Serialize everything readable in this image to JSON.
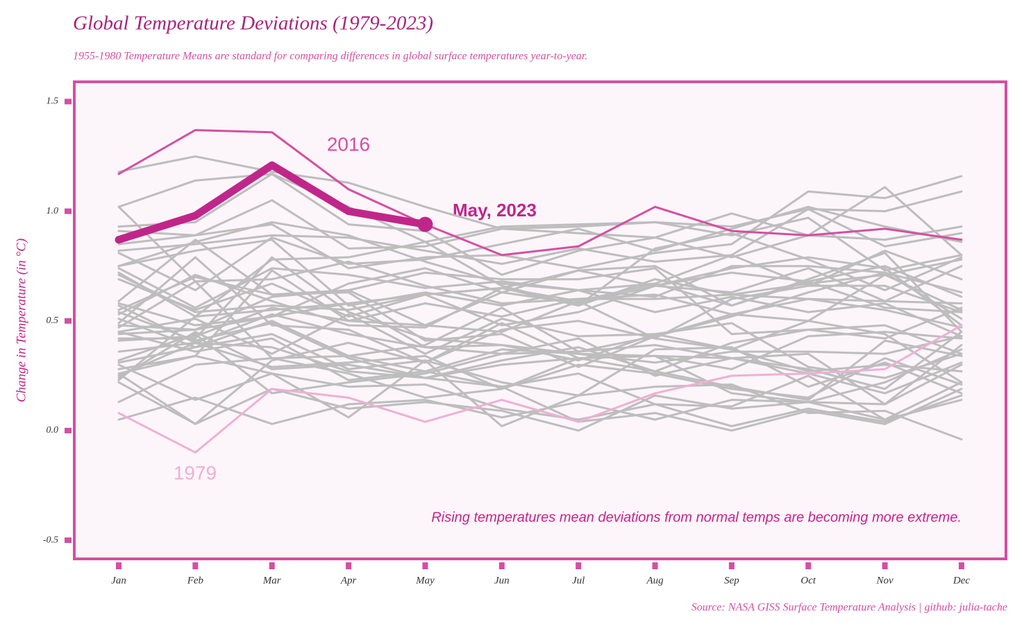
{
  "chart_data": {
    "type": "line",
    "title": "Global Temperature Deviations (1979-2023)",
    "subtitle": "1955-1980 Temperature Means are standard for comparing differences in global surface temperatures year-to-year.",
    "y_label": "Change in Temperature (in °C)",
    "source": "Source: NASA GISS Surface Temperature Analysis | github: julia-tache",
    "annotations": [
      "May, 2023",
      "Rising temperatures mean deviations from normal temps are becoming more extreme."
    ],
    "categories": [
      "Jan",
      "Feb",
      "Mar",
      "Apr",
      "May",
      "Jun",
      "Jul",
      "Aug",
      "Sep",
      "Oct",
      "Nov",
      "Dec"
    ],
    "ylim": [
      -0.585,
      1.59
    ],
    "yticks": [
      {
        "value": -0.5,
        "label": "-0.5"
      },
      {
        "value": 0,
        "label": "0.0"
      },
      {
        "value": 0.5,
        "label": "0.5"
      },
      {
        "value": 1,
        "label": "1.0"
      },
      {
        "value": 1.5,
        "label": "1.5"
      }
    ],
    "grid": false,
    "series": [
      {
        "color": "#bdbdbd",
        "values": [
          0.25,
          0.4,
          0.29,
          0.31,
          0.34,
          0.19,
          0.3,
          0.26,
          0.19,
          0.15,
          0.33,
          0.21
        ]
      },
      {
        "color": "#bdbdbd",
        "values": [
          0.54,
          0.41,
          0.49,
          0.33,
          0.24,
          0.3,
          0.33,
          0.34,
          0.17,
          0.13,
          0.22,
          0.37
        ]
      },
      {
        "color": "#bdbdbd",
        "values": [
          0.05,
          0.15,
          0.03,
          0.12,
          0.14,
          0.06,
          0.13,
          0.05,
          0.14,
          0.13,
          0.12,
          0.39
        ]
      },
      {
        "color": "#bdbdbd",
        "values": [
          0.51,
          0.38,
          0.44,
          0.28,
          0.32,
          0.22,
          0.16,
          0.37,
          0.38,
          0.2,
          0.31,
          0.17
        ]
      },
      {
        "color": "#bdbdbd",
        "values": [
          0.3,
          0.14,
          0.26,
          0.06,
          0.32,
          0.02,
          0.16,
          0.2,
          0.21,
          0.08,
          0.09,
          -0.04
        ]
      },
      {
        "color": "#bdbdbd",
        "values": [
          0.22,
          0.03,
          0.19,
          0.1,
          0.13,
          0.09,
          0.0,
          0.16,
          0.1,
          0.13,
          0.05,
          0.14
        ]
      },
      {
        "color": "#bdbdbd",
        "values": [
          0.28,
          0.34,
          0.26,
          0.2,
          0.21,
          0.1,
          0.05,
          0.12,
          0.02,
          0.1,
          0.04,
          0.16
        ]
      },
      {
        "color": "#bdbdbd",
        "values": [
          0.32,
          0.44,
          0.17,
          0.22,
          0.26,
          0.35,
          0.42,
          0.25,
          0.33,
          0.28,
          0.19,
          0.45
        ]
      },
      {
        "color": "#bdbdbd",
        "values": [
          0.57,
          0.4,
          0.53,
          0.44,
          0.38,
          0.35,
          0.36,
          0.39,
          0.33,
          0.35,
          0.12,
          0.3
        ]
      },
      {
        "color": "#bdbdbd",
        "values": [
          0.13,
          0.3,
          0.33,
          0.26,
          0.15,
          0.19,
          0.33,
          0.34,
          0.33,
          0.26,
          0.17,
          0.31
        ]
      },
      {
        "color": "#bdbdbd",
        "values": [
          0.42,
          0.42,
          0.79,
          0.54,
          0.42,
          0.39,
          0.35,
          0.34,
          0.28,
          0.43,
          0.45,
          0.42
        ]
      },
      {
        "color": "#bdbdbd",
        "values": [
          0.45,
          0.51,
          0.35,
          0.53,
          0.35,
          0.51,
          0.43,
          0.44,
          0.49,
          0.29,
          0.24,
          0.35
        ]
      },
      {
        "color": "#bdbdbd",
        "values": [
          0.45,
          0.36,
          0.42,
          0.23,
          0.27,
          0.2,
          0.04,
          0.08,
          0.0,
          0.09,
          0.03,
          0.19
        ]
      },
      {
        "color": "#bdbdbd",
        "values": [
          0.36,
          0.4,
          0.38,
          0.27,
          0.24,
          0.2,
          0.26,
          0.12,
          0.11,
          0.25,
          0.05,
          0.22
        ]
      },
      {
        "color": "#bdbdbd",
        "values": [
          0.26,
          0.03,
          0.32,
          0.4,
          0.31,
          0.49,
          0.33,
          0.27,
          0.4,
          0.46,
          0.48,
          0.35
        ]
      },
      {
        "color": "#bdbdbd",
        "values": [
          0.49,
          0.79,
          0.48,
          0.46,
          0.31,
          0.46,
          0.5,
          0.42,
          0.37,
          0.5,
          0.44,
          0.22
        ]
      },
      {
        "color": "#bdbdbd",
        "values": [
          0.24,
          0.45,
          0.28,
          0.3,
          0.24,
          0.32,
          0.38,
          0.27,
          0.2,
          0.14,
          0.41,
          0.34
        ]
      },
      {
        "color": "#bdbdbd",
        "values": [
          0.31,
          0.38,
          0.5,
          0.34,
          0.39,
          0.56,
          0.36,
          0.43,
          0.53,
          0.6,
          0.59,
          0.58
        ]
      },
      {
        "color": "#bdbdbd",
        "values": [
          0.59,
          0.87,
          0.62,
          0.64,
          0.72,
          0.69,
          0.69,
          0.74,
          0.44,
          0.46,
          0.42,
          0.56
        ]
      },
      {
        "color": "#bdbdbd",
        "values": [
          0.47,
          0.68,
          0.33,
          0.34,
          0.27,
          0.37,
          0.35,
          0.31,
          0.36,
          0.36,
          0.35,
          0.43
        ]
      },
      {
        "color": "#bdbdbd",
        "values": [
          0.23,
          0.52,
          0.55,
          0.58,
          0.38,
          0.39,
          0.32,
          0.44,
          0.37,
          0.27,
          0.3,
          0.27
        ]
      },
      {
        "color": "#bdbdbd",
        "values": [
          0.41,
          0.43,
          0.56,
          0.5,
          0.58,
          0.52,
          0.6,
          0.62,
          0.53,
          0.5,
          0.71,
          0.55
        ]
      },
      {
        "color": "#bdbdbd",
        "values": [
          0.75,
          0.82,
          0.87,
          0.57,
          0.63,
          0.57,
          0.64,
          0.54,
          0.61,
          0.54,
          0.58,
          0.43
        ]
      },
      {
        "color": "#bdbdbd",
        "values": [
          0.71,
          0.54,
          0.57,
          0.55,
          0.62,
          0.48,
          0.54,
          0.66,
          0.63,
          0.74,
          0.59,
          0.75
        ]
      },
      {
        "color": "#bdbdbd",
        "values": [
          0.55,
          0.7,
          0.62,
          0.63,
          0.41,
          0.44,
          0.29,
          0.43,
          0.52,
          0.63,
          0.72,
          0.51
        ]
      },
      {
        "color": "#bdbdbd",
        "values": [
          0.74,
          0.56,
          0.74,
          0.71,
          0.65,
          0.68,
          0.64,
          0.61,
          0.75,
          0.75,
          0.72,
          0.63
        ]
      },
      {
        "color": "#bdbdbd",
        "values": [
          0.53,
          0.71,
          0.59,
          0.48,
          0.47,
          0.65,
          0.57,
          0.69,
          0.62,
          0.67,
          0.71,
          0.78
        ]
      },
      {
        "color": "#bdbdbd",
        "values": [
          1.02,
          0.68,
          0.69,
          0.77,
          0.66,
          0.58,
          0.6,
          0.6,
          0.62,
          0.6,
          0.55,
          0.47
        ]
      },
      {
        "color": "#bdbdbd",
        "values": [
          0.26,
          0.34,
          0.73,
          0.5,
          0.48,
          0.45,
          0.59,
          0.42,
          0.6,
          0.66,
          0.66,
          0.54
        ]
      },
      {
        "color": "#bdbdbd",
        "values": [
          0.58,
          0.48,
          0.52,
          0.58,
          0.62,
          0.65,
          0.73,
          0.66,
          0.72,
          0.68,
          0.75,
          0.61
        ]
      },
      {
        "color": "#bdbdbd",
        "values": [
          0.75,
          0.86,
          0.95,
          0.89,
          0.77,
          0.67,
          0.64,
          0.67,
          0.57,
          0.69,
          0.81,
          0.45
        ]
      },
      {
        "color": "#bdbdbd",
        "values": [
          0.48,
          0.46,
          0.61,
          0.64,
          0.48,
          0.63,
          0.73,
          0.75,
          0.57,
          0.68,
          0.56,
          0.54
        ]
      },
      {
        "color": "#bdbdbd",
        "values": [
          0.44,
          0.46,
          0.52,
          0.67,
          0.74,
          0.63,
          0.58,
          0.66,
          0.74,
          0.79,
          0.74,
          0.48
        ]
      },
      {
        "color": "#bdbdbd",
        "values": [
          0.69,
          0.55,
          0.67,
          0.52,
          0.62,
          0.65,
          0.59,
          0.67,
          0.8,
          0.66,
          0.82,
          0.69
        ]
      },
      {
        "color": "#bdbdbd",
        "values": [
          0.72,
          0.52,
          0.78,
          0.79,
          0.86,
          0.66,
          0.57,
          0.83,
          0.9,
          0.78,
          0.64,
          0.79
        ]
      },
      {
        "color": "#bdbdbd",
        "values": [
          0.85,
          0.89,
          0.94,
          0.74,
          0.79,
          0.8,
          0.74,
          0.81,
          0.85,
          1.09,
          1.06,
          1.16
        ]
      },
      {
        "color": "#bdbdbd",
        "values": [
          1.02,
          1.14,
          1.17,
          0.94,
          0.91,
          0.71,
          0.82,
          0.88,
          0.79,
          0.89,
          0.87,
          0.93
        ]
      },
      {
        "color": "#bdbdbd",
        "values": [
          0.82,
          0.85,
          0.89,
          0.88,
          0.82,
          0.76,
          0.83,
          0.77,
          0.8,
          1.01,
          0.84,
          0.9
        ]
      },
      {
        "color": "#bdbdbd",
        "values": [
          0.93,
          0.95,
          1.17,
          1.02,
          0.86,
          0.93,
          0.94,
          0.95,
          0.93,
          1.01,
          1.0,
          1.09
        ]
      },
      {
        "color": "#bdbdbd",
        "values": [
          1.18,
          1.25,
          1.18,
          1.13,
          1.02,
          0.92,
          0.9,
          0.88,
          0.99,
          0.89,
          1.11,
          0.8
        ]
      },
      {
        "color": "#bdbdbd",
        "values": [
          0.81,
          0.64,
          0.88,
          0.76,
          0.78,
          0.85,
          0.92,
          0.82,
          0.92,
          1.02,
          0.93,
          0.86
        ]
      },
      {
        "color": "#bdbdbd",
        "values": [
          0.91,
          0.89,
          1.05,
          0.83,
          0.84,
          0.92,
          0.93,
          0.95,
          0.89,
          0.97,
          0.73,
          0.8
        ]
      },
      {
        "name": "1979",
        "color": "#eeb0d5",
        "values": [
          0.08,
          -0.1,
          0.19,
          0.15,
          0.04,
          0.14,
          0.04,
          0.17,
          0.25,
          0.26,
          0.28,
          0.48
        ]
      },
      {
        "name": "2016",
        "color": "#d54ea3",
        "values": [
          1.17,
          1.37,
          1.36,
          1.1,
          0.94,
          0.8,
          0.84,
          1.02,
          0.91,
          0.89,
          0.92,
          0.87
        ]
      },
      {
        "color": "#c0268a",
        "values": [
          0.87,
          0.98,
          1.21,
          1.0,
          0.94,
          null,
          null,
          null,
          null,
          null,
          null,
          null
        ]
      }
    ]
  }
}
